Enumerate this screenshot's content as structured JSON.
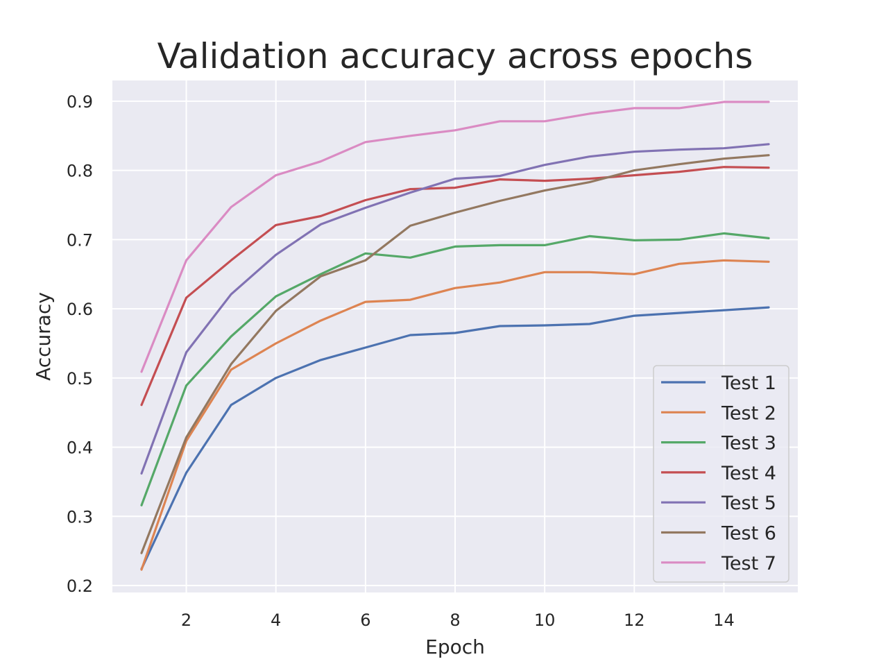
{
  "chart_data": {
    "type": "line",
    "title": "Validation accuracy across epochs",
    "xlabel": "Epoch",
    "ylabel": "Accuracy",
    "xlim": [
      0.35,
      15.65
    ],
    "ylim": [
      0.19,
      0.93
    ],
    "xticks": [
      2,
      4,
      6,
      8,
      10,
      12,
      14
    ],
    "yticks": [
      0.2,
      0.3,
      0.4,
      0.5,
      0.6,
      0.7,
      0.8,
      0.9
    ],
    "grid": true,
    "legend_position": "lower-right",
    "x": [
      1,
      2,
      3,
      4,
      5,
      6,
      7,
      8,
      9,
      10,
      11,
      12,
      13,
      14,
      15
    ],
    "series": [
      {
        "name": "Test 1",
        "color": "#4c72b0",
        "values": [
          0.224,
          0.363,
          0.461,
          0.5,
          0.526,
          0.544,
          0.562,
          0.565,
          0.575,
          0.576,
          0.578,
          0.59,
          0.594,
          0.598,
          0.602
        ]
      },
      {
        "name": "Test 2",
        "color": "#dd8452",
        "values": [
          0.223,
          0.409,
          0.512,
          0.55,
          0.583,
          0.61,
          0.613,
          0.63,
          0.638,
          0.653,
          0.653,
          0.65,
          0.665,
          0.67,
          0.668
        ]
      },
      {
        "name": "Test 3",
        "color": "#55a868",
        "values": [
          0.316,
          0.489,
          0.56,
          0.618,
          0.65,
          0.68,
          0.674,
          0.69,
          0.692,
          0.692,
          0.705,
          0.699,
          0.7,
          0.709,
          0.702
        ]
      },
      {
        "name": "Test 4",
        "color": "#c44e52",
        "values": [
          0.461,
          0.616,
          0.67,
          0.721,
          0.734,
          0.757,
          0.773,
          0.775,
          0.787,
          0.785,
          0.788,
          0.793,
          0.798,
          0.805,
          0.804
        ]
      },
      {
        "name": "Test 5",
        "color": "#8172b3",
        "values": [
          0.362,
          0.537,
          0.621,
          0.678,
          0.722,
          0.746,
          0.768,
          0.788,
          0.792,
          0.808,
          0.82,
          0.827,
          0.83,
          0.832,
          0.838
        ]
      },
      {
        "name": "Test 6",
        "color": "#937860",
        "values": [
          0.247,
          0.414,
          0.52,
          0.597,
          0.647,
          0.67,
          0.72,
          0.739,
          0.756,
          0.771,
          0.783,
          0.8,
          0.809,
          0.817,
          0.822
        ]
      },
      {
        "name": "Test 7",
        "color": "#da8bc3",
        "values": [
          0.509,
          0.67,
          0.747,
          0.793,
          0.813,
          0.841,
          0.85,
          0.858,
          0.871,
          0.871,
          0.882,
          0.89,
          0.89,
          0.899,
          0.899
        ]
      }
    ]
  },
  "colors": {
    "axes_background": "#eaeaf2",
    "grid": "#ffffff",
    "text": "#262626"
  }
}
